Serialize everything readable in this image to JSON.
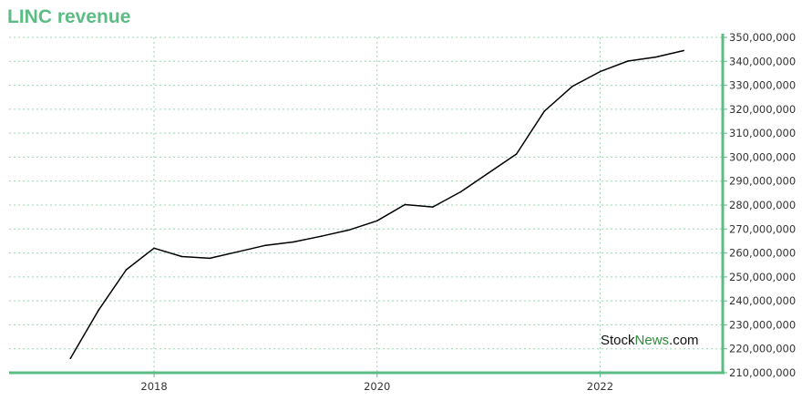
{
  "header": {
    "title": "LINC revenue"
  },
  "watermark": {
    "part1": "Stock",
    "part2": "News",
    "part3": ".com"
  },
  "colors": {
    "accent": "#5cbd84",
    "line": "#000000",
    "grid": "#9bd5b3",
    "watermark_green": "#2e8b3c"
  },
  "chart_data": {
    "type": "line",
    "title": "LINC revenue",
    "xlabel": "",
    "ylabel": "",
    "grid": true,
    "y_axis_position": "right",
    "xlim": [
      2016.7,
      2023.1
    ],
    "ylim": [
      210000000,
      350000000
    ],
    "x_ticks": [
      2018,
      2020,
      2022
    ],
    "x_tick_labels": [
      "2018",
      "2020",
      "2022"
    ],
    "y_ticks": [
      210000000,
      220000000,
      230000000,
      240000000,
      250000000,
      260000000,
      270000000,
      280000000,
      290000000,
      300000000,
      310000000,
      320000000,
      330000000,
      340000000,
      350000000
    ],
    "y_tick_labels": [
      "210,000,000",
      "220,000,000",
      "230,000,000",
      "240,000,000",
      "250,000,000",
      "260,000,000",
      "270,000,000",
      "280,000,000",
      "290,000,000",
      "300,000,000",
      "310,000,000",
      "320,000,000",
      "330,000,000",
      "340,000,000",
      "350,000,000"
    ],
    "series": [
      {
        "x": [
          2017.25,
          2017.5,
          2017.75,
          2018.0,
          2018.25,
          2018.5,
          2018.75,
          2019.0,
          2019.25,
          2019.5,
          2019.75,
          2020.0,
          2020.25,
          2020.5,
          2020.75,
          2021.0,
          2021.25,
          2021.5,
          2021.75,
          2022.0,
          2022.25,
          2022.5,
          2022.75
        ],
        "values": [
          216000000,
          236000000,
          253000000,
          262000000,
          258500000,
          257800000,
          260500000,
          263200000,
          264600000,
          267000000,
          269600000,
          273400000,
          280200000,
          279200000,
          285500000,
          293400000,
          301300000,
          319200000,
          329500000,
          335700000,
          340100000,
          341800000,
          344500000
        ]
      }
    ]
  }
}
